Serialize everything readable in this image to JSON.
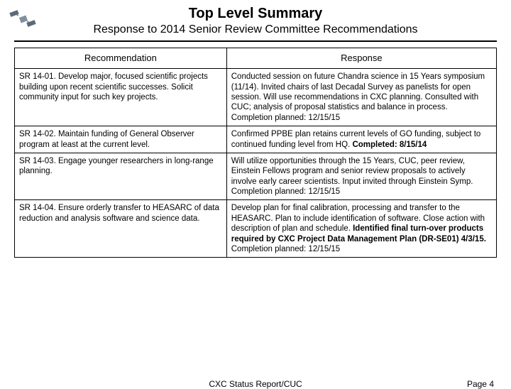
{
  "header": {
    "title": "Top Level Summary",
    "subtitle": "Response to 2014 Senior Review Committee Recommendations"
  },
  "columns": {
    "rec": "Recommendation",
    "resp": "Response"
  },
  "rows": [
    {
      "rec": "SR 14-01. Develop major, focused scientific projects building upon recent scientific successes. Solicit community input for such key projects.",
      "resp_parts": [
        {
          "t": "Conducted session on future Chandra science in 15 Years symposium (11/14). Invited chairs of last Decadal Survey as panelists for open session. Will use recommendations in CXC planning. Consulted with CUC; analysis of proposal statistics and balance in process.",
          "b": false
        },
        {
          "t": "Completion planned: 12/15/15",
          "b": false
        }
      ]
    },
    {
      "rec": "SR 14-02. Maintain funding of General Observer program at least at the current level.",
      "resp_parts": [
        {
          "t": "Confirmed PPBE plan retains current levels of GO funding, subject to continued funding level from HQ. ",
          "b": false
        },
        {
          "t": "Completed: 8/15/14",
          "b": true
        }
      ]
    },
    {
      "rec": "SR 14-03. Engage younger researchers in long-range planning.",
      "resp_parts": [
        {
          "t": "Will utilize opportunities through the 15 Years, CUC, peer review, Einstein Fellows program and senior review proposals to actively involve early career scientists. Input invited through Einstein Symp.",
          "b": false
        },
        {
          "t": "Completion planned: 12/15/15",
          "b": false
        }
      ]
    },
    {
      "rec": "SR 14-04. Ensure orderly transfer to HEASARC of data reduction and analysis software and science data.",
      "resp_parts": [
        {
          "t": "Develop plan for final calibration, processing and transfer to the HEASARC. Plan to include identification of software. Close action with description of plan and schedule. ",
          "b": false
        },
        {
          "t": "Identified final turn-over products required by CXC Project Data Management Plan (DR-SE01) 4/3/15.",
          "b": true
        },
        {
          "t": " Completion planned: 12/15/15",
          "b": false
        }
      ]
    }
  ],
  "footer": {
    "center": "CXC Status Report/CUC",
    "right": "Page 4"
  },
  "colors": {
    "text": "#000000",
    "background": "#ffffff",
    "border": "#000000"
  }
}
